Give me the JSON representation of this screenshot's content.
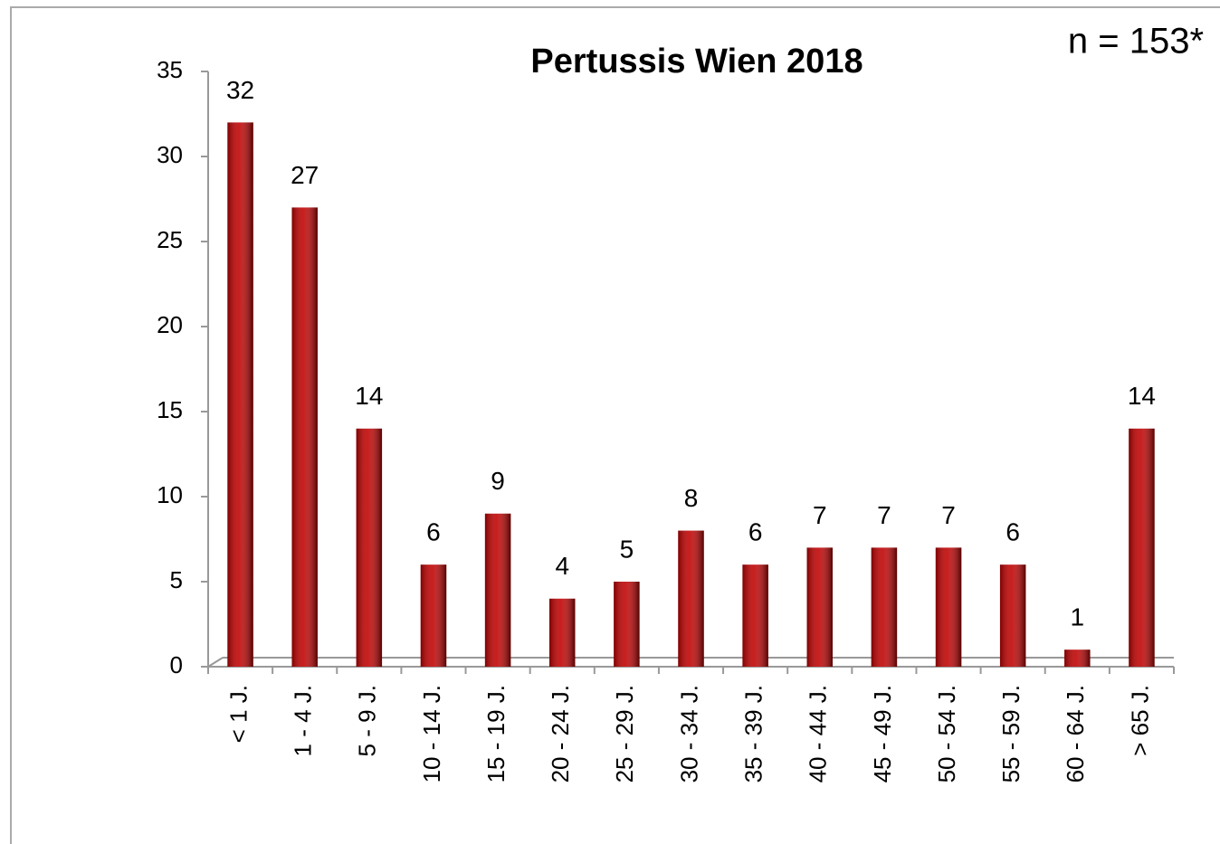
{
  "chart_data": {
    "type": "bar",
    "title": "Pertussis  Wien 2018",
    "annotation": "n = 153*",
    "categories": [
      "< 1 J.",
      "1 - 4 J.",
      "5 - 9 J.",
      "10 - 14 J.",
      "15 - 19 J.",
      "20 - 24 J.",
      "25 - 29 J.",
      "30 - 34 J.",
      "35 - 39 J.",
      "40 - 44 J.",
      "45 - 49 J.",
      "50 - 54 J.",
      "55 - 59 J.",
      "60 - 64 J.",
      "> 65 J."
    ],
    "values": [
      32,
      27,
      14,
      6,
      9,
      4,
      5,
      8,
      6,
      7,
      7,
      7,
      6,
      1,
      14
    ],
    "color": "#c00000",
    "ylim": [
      0,
      35
    ],
    "yticks": [
      0,
      5,
      10,
      15,
      20,
      25,
      30,
      35
    ],
    "grid": false
  }
}
